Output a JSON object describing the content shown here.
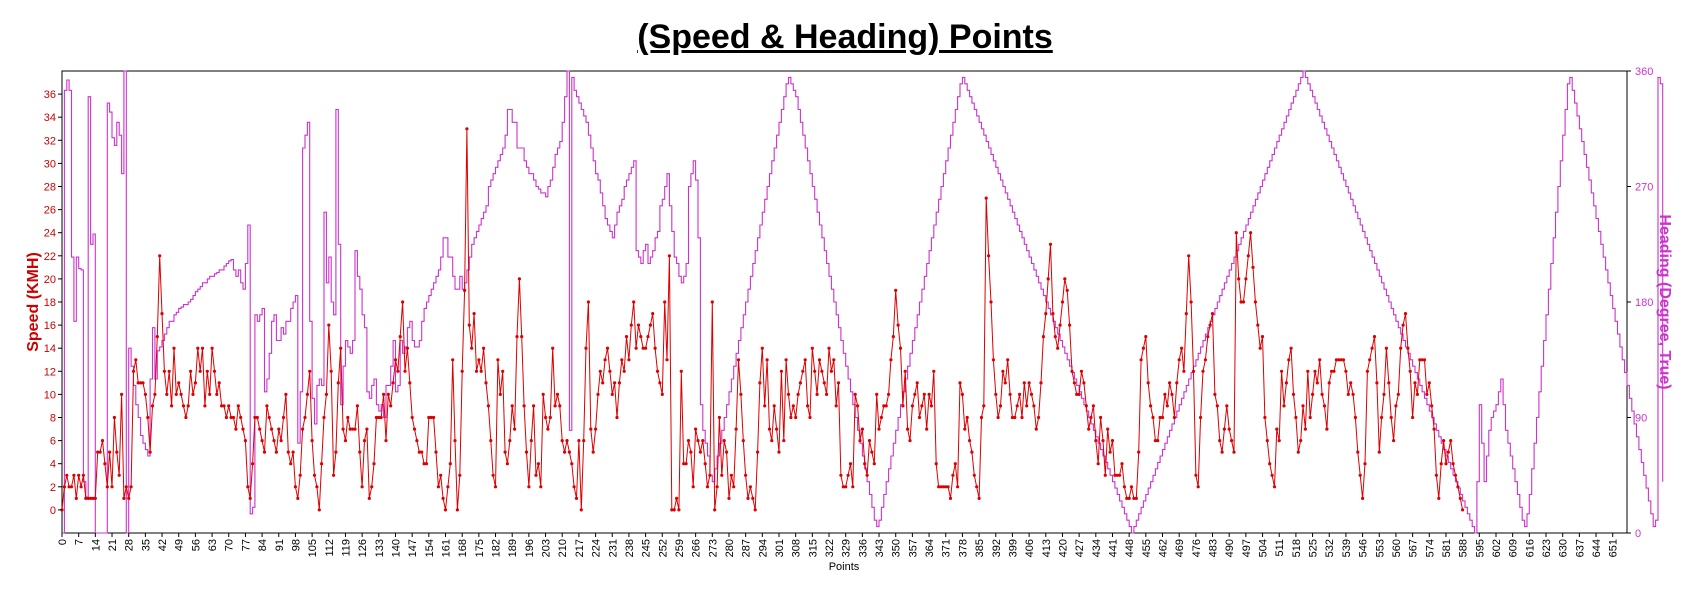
{
  "chart_data": {
    "type": "line",
    "title": "(Speed & Heading) Points",
    "xlabel": "Points",
    "ylabel_left": "Speed (KMH)",
    "ylabel_right": "Heading (Degree, True)",
    "xlim": [
      0,
      657
    ],
    "ylim_left": [
      -2,
      38
    ],
    "ylim_right": [
      0,
      360
    ],
    "x_ticks": [
      0,
      7,
      14,
      21,
      28,
      35,
      42,
      49,
      56,
      63,
      70,
      77,
      84,
      91,
      98,
      105,
      112,
      119,
      126,
      133,
      140,
      147,
      154,
      161,
      168,
      175,
      182,
      189,
      196,
      203,
      210,
      217,
      224,
      231,
      238,
      245,
      252,
      259,
      266,
      273,
      280,
      287,
      294,
      301,
      308,
      315,
      322,
      329,
      336,
      343,
      350,
      357,
      364,
      371,
      378,
      385,
      392,
      399,
      406,
      413,
      420,
      427,
      434,
      441,
      448,
      455,
      462,
      469,
      476,
      483,
      490,
      497,
      504,
      511,
      518,
      525,
      532,
      539,
      546,
      553,
      560,
      567,
      574,
      581,
      588,
      595,
      602,
      609,
      616,
      623,
      630,
      637,
      644,
      651
    ],
    "y_ticks_left": [
      0,
      2,
      4,
      6,
      8,
      10,
      12,
      14,
      16,
      18,
      20,
      22,
      24,
      26,
      28,
      30,
      32,
      34,
      36
    ],
    "y_ticks_right": [
      0,
      90,
      180,
      270,
      360
    ],
    "grid": false,
    "colors": {
      "speed": "#dd0000",
      "heading": "#cc33cc",
      "left_axis": "#cc0000",
      "right_axis": "#cc33cc"
    },
    "series": [
      {
        "axis": "left",
        "values": [
          0,
          2,
          3,
          2,
          2,
          3,
          1,
          3,
          2,
          3,
          1,
          1,
          1,
          1,
          1,
          5,
          5,
          6,
          4,
          2,
          5,
          2,
          8,
          5,
          3,
          10,
          1,
          2,
          1,
          2,
          12,
          13,
          11,
          11,
          11,
          10,
          8,
          5,
          9,
          10,
          15,
          22,
          17,
          12,
          10,
          12,
          9,
          14,
          10,
          11,
          10,
          9,
          8,
          9,
          12,
          10,
          11,
          14,
          12,
          14,
          9,
          12,
          10,
          14,
          12,
          10,
          11,
          9,
          9,
          8,
          9,
          8,
          8,
          7,
          9,
          8,
          7,
          6,
          2,
          1,
          4,
          8,
          8,
          7,
          6,
          5,
          9,
          8,
          7,
          6,
          5,
          7,
          6,
          8,
          10,
          5,
          4,
          5,
          2,
          1,
          3,
          7,
          8,
          10,
          12,
          6,
          3,
          2,
          0,
          4,
          8,
          10,
          16,
          12,
          3,
          5,
          11,
          14,
          7,
          6,
          8,
          7,
          7,
          7,
          9,
          5,
          2,
          6,
          7,
          1,
          2,
          4,
          8,
          8,
          8,
          10,
          6,
          10,
          9,
          11,
          13,
          12,
          15,
          18,
          12,
          14,
          11,
          8,
          7,
          6,
          5,
          5,
          4,
          4,
          8,
          8,
          8,
          5,
          2,
          3,
          1,
          0,
          2,
          4,
          13,
          6,
          0,
          3,
          12,
          19,
          33,
          16,
          14,
          17,
          12,
          13,
          12,
          14,
          11,
          9,
          6,
          3,
          2,
          13,
          10,
          12,
          5,
          4,
          6,
          9,
          7,
          15,
          20,
          15,
          9,
          5,
          2,
          6,
          9,
          3,
          4,
          2,
          10,
          8,
          7,
          8,
          14,
          9,
          10,
          9,
          6,
          5,
          6,
          5,
          4,
          2,
          1,
          6,
          0,
          6,
          14,
          18,
          7,
          5,
          7,
          10,
          12,
          11,
          13,
          14,
          12,
          10,
          11,
          8,
          11,
          13,
          12,
          15,
          13,
          16,
          18,
          14,
          16,
          15,
          14,
          14,
          15,
          16,
          17,
          14,
          12,
          11,
          10,
          18,
          13,
          22,
          0,
          0,
          1,
          0,
          12,
          4,
          4,
          6,
          5,
          2,
          7,
          6,
          5,
          6,
          4,
          2,
          3,
          18,
          0,
          2,
          8,
          3,
          6,
          5,
          1,
          3,
          2,
          7,
          13,
          10,
          6,
          3,
          1,
          2,
          1,
          0,
          5,
          11,
          14,
          9,
          13,
          7,
          6,
          9,
          7,
          5,
          12,
          6,
          13,
          10,
          8,
          9,
          8,
          10,
          11,
          12,
          13,
          9,
          8,
          14,
          12,
          10,
          13,
          12,
          11,
          10,
          14,
          12,
          13,
          9,
          11,
          3,
          2,
          2,
          3,
          4,
          2,
          10,
          9,
          6,
          7,
          4,
          3,
          6,
          5,
          4,
          10,
          7,
          8,
          9,
          9,
          10,
          13,
          15,
          19,
          16,
          14,
          9,
          12,
          7,
          6,
          9,
          10,
          11,
          8,
          9,
          10,
          7,
          10,
          9,
          12,
          4,
          2,
          2,
          2,
          2,
          2,
          1,
          3,
          4,
          2,
          11,
          10,
          7,
          8,
          6,
          5,
          3,
          2,
          1,
          8,
          9,
          27,
          22,
          18,
          13,
          10,
          8,
          9,
          12,
          11,
          13,
          10,
          8,
          8,
          9,
          10,
          8,
          11,
          9,
          11,
          10,
          9,
          7,
          8,
          11,
          15,
          17,
          20,
          23,
          17,
          15,
          14,
          16,
          18,
          20,
          19,
          16,
          12,
          11,
          10,
          10,
          12,
          11,
          9,
          7,
          8,
          9,
          6,
          4,
          8,
          6,
          3,
          7,
          5,
          6,
          3,
          3,
          3,
          4,
          2,
          1,
          1,
          2,
          1,
          1,
          5,
          13,
          14,
          15,
          11,
          9,
          8,
          6,
          6,
          8,
          8,
          10,
          9,
          11,
          10,
          8,
          11,
          13,
          14,
          12,
          17,
          22,
          18,
          12,
          3,
          2,
          8,
          12,
          13,
          15,
          16,
          17,
          10,
          9,
          6,
          5,
          7,
          9,
          7,
          6,
          5,
          24,
          20,
          18,
          18,
          20,
          22,
          24,
          21,
          18,
          16,
          14,
          15,
          8,
          6,
          4,
          3,
          2,
          7,
          6,
          12,
          9,
          11,
          13,
          14,
          10,
          8,
          5,
          6,
          9,
          7,
          12,
          8,
          10,
          12,
          11,
          13,
          10,
          9,
          7,
          11,
          12,
          12,
          13,
          13,
          13,
          13,
          12,
          10,
          11,
          10,
          8,
          5,
          3,
          1,
          4,
          12,
          13,
          14,
          15,
          11,
          5,
          8,
          10,
          14,
          11,
          8,
          6,
          9,
          10,
          14,
          16,
          17,
          14,
          12,
          8,
          11,
          10,
          13,
          13,
          13,
          10,
          11,
          9,
          7,
          3,
          1,
          4,
          6,
          4,
          5,
          6,
          4,
          3,
          2,
          1,
          0
        ]
      },
      {
        "axis": "right",
        "values": [
          0,
          345,
          353,
          345,
          215,
          165,
          215,
          206,
          205,
          40,
          28,
          340,
          225,
          233,
          0,
          0,
          0,
          0,
          0,
          335,
          328,
          308,
          302,
          320,
          310,
          280,
          360,
          0,
          144,
          130,
          115,
          100,
          90,
          76,
          70,
          65,
          60,
          120,
          160,
          120,
          142,
          145,
          150,
          155,
          160,
          165,
          165,
          170,
          172,
          175,
          176,
          178,
          178,
          180,
          182,
          185,
          188,
          190,
          192,
          195,
          195,
          198,
          200,
          200,
          202,
          203,
          205,
          205,
          208,
          210,
          212,
          213,
          205,
          200,
          205,
          195,
          190,
          210,
          240,
          15,
          20,
          170,
          165,
          170,
          175,
          110,
          120,
          140,
          165,
          170,
          150,
          150,
          160,
          155,
          165,
          165,
          175,
          180,
          185,
          70,
          110,
          300,
          310,
          320,
          165,
          105,
          85,
          115,
          120,
          115,
          250,
          195,
          215,
          180,
          170,
          330,
          225,
          100,
          130,
          150,
          145,
          140,
          150,
          220,
          200,
          190,
          170,
          160,
          110,
          105,
          115,
          120,
          100,
          95,
          100,
          90,
          115,
          115,
          130,
          150,
          110,
          115,
          150,
          140,
          145,
          160,
          165,
          150,
          145,
          145,
          150,
          165,
          175,
          180,
          185,
          190,
          195,
          200,
          205,
          215,
          230,
          230,
          215,
          215,
          200,
          190,
          190,
          200,
          190,
          195,
          205,
          215,
          225,
          230,
          235,
          240,
          245,
          250,
          255,
          270,
          275,
          280,
          285,
          290,
          295,
          300,
          310,
          330,
          330,
          320,
          320,
          300,
          300,
          300,
          290,
          285,
          280,
          280,
          275,
          270,
          268,
          265,
          265,
          262,
          270,
          275,
          285,
          295,
          300,
          305,
          320,
          340,
          360,
          80,
          355,
          345,
          340,
          335,
          330,
          325,
          320,
          310,
          300,
          290,
          280,
          275,
          265,
          255,
          245,
          240,
          235,
          230,
          240,
          250,
          255,
          260,
          270,
          275,
          280,
          285,
          290,
          220,
          215,
          210,
          220,
          225,
          210,
          215,
          220,
          230,
          235,
          255,
          260,
          270,
          280,
          255,
          235,
          215,
          210,
          200,
          195,
          200,
          210,
          270,
          280,
          290,
          275,
          230,
          100,
          80,
          70,
          60,
          45,
          40,
          50,
          60,
          70,
          80,
          90,
          100,
          110,
          120,
          130,
          140,
          150,
          160,
          170,
          180,
          190,
          200,
          210,
          220,
          230,
          240,
          250,
          260,
          270,
          280,
          290,
          300,
          310,
          320,
          330,
          340,
          350,
          355,
          350,
          345,
          340,
          330,
          320,
          310,
          300,
          290,
          280,
          270,
          260,
          250,
          240,
          230,
          220,
          210,
          200,
          190,
          180,
          170,
          160,
          150,
          140,
          130,
          120,
          110,
          100,
          90,
          80,
          70,
          60,
          50,
          40,
          30,
          20,
          10,
          5,
          10,
          20,
          30,
          40,
          50,
          60,
          70,
          80,
          90,
          100,
          110,
          120,
          130,
          140,
          150,
          160,
          170,
          180,
          190,
          200,
          210,
          220,
          230,
          240,
          250,
          260,
          270,
          280,
          290,
          300,
          310,
          320,
          330,
          340,
          350,
          355,
          350,
          345,
          340,
          335,
          330,
          325,
          320,
          315,
          310,
          305,
          300,
          295,
          290,
          285,
          280,
          275,
          270,
          265,
          260,
          255,
          250,
          245,
          240,
          235,
          230,
          225,
          220,
          215,
          210,
          205,
          200,
          195,
          190,
          185,
          180,
          175,
          170,
          165,
          160,
          155,
          150,
          145,
          140,
          135,
          130,
          125,
          120,
          115,
          110,
          105,
          100,
          95,
          90,
          85,
          80,
          75,
          70,
          65,
          60,
          55,
          50,
          45,
          40,
          35,
          30,
          25,
          20,
          15,
          10,
          5,
          0,
          5,
          10,
          15,
          20,
          25,
          30,
          35,
          40,
          45,
          50,
          55,
          60,
          65,
          70,
          75,
          80,
          85,
          90,
          95,
          100,
          105,
          110,
          115,
          120,
          125,
          130,
          135,
          140,
          145,
          150,
          155,
          160,
          165,
          170,
          175,
          180,
          185,
          190,
          195,
          200,
          205,
          210,
          215,
          220,
          225,
          230,
          235,
          240,
          245,
          250,
          255,
          260,
          265,
          270,
          275,
          280,
          285,
          290,
          295,
          300,
          305,
          310,
          315,
          320,
          325,
          330,
          335,
          340,
          345,
          350,
          355,
          360,
          355,
          350,
          345,
          340,
          335,
          330,
          325,
          320,
          315,
          310,
          305,
          300,
          295,
          290,
          285,
          280,
          275,
          270,
          265,
          260,
          255,
          250,
          245,
          240,
          235,
          230,
          225,
          220,
          215,
          210,
          205,
          200,
          195,
          190,
          185,
          180,
          175,
          170,
          165,
          160,
          155,
          150,
          145,
          140,
          135,
          130,
          125,
          120,
          115,
          110,
          105,
          100,
          95,
          90,
          85,
          80,
          75,
          70,
          65,
          60,
          55,
          50,
          45,
          40,
          35,
          30,
          25,
          20,
          15,
          10,
          5,
          0,
          40,
          100,
          70,
          40,
          60,
          80,
          90,
          95,
          100,
          110,
          120,
          100,
          80,
          70,
          60,
          50,
          40,
          30,
          20,
          10,
          5,
          15,
          30,
          50,
          70,
          90,
          110,
          130,
          150,
          170,
          190,
          210,
          230,
          250,
          270,
          290,
          310,
          330,
          350,
          355,
          345,
          335,
          325,
          315,
          305,
          295,
          285,
          275,
          265,
          255,
          245,
          235,
          225,
          215,
          205,
          195,
          185,
          175,
          165,
          155,
          145,
          135,
          125,
          115,
          105,
          95,
          85,
          75,
          65,
          55,
          45,
          35,
          25,
          15,
          5,
          10,
          355,
          350,
          40
        ]
      }
    ]
  }
}
